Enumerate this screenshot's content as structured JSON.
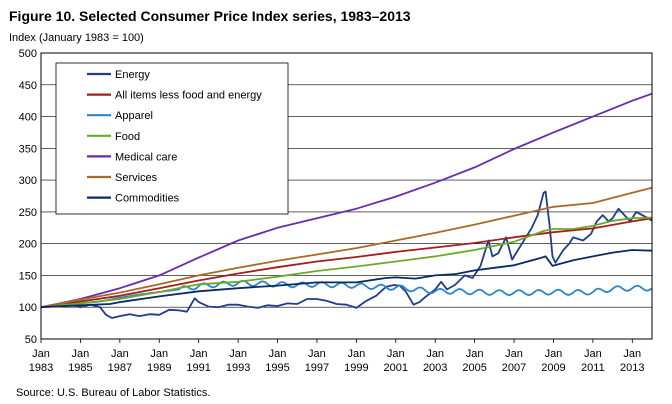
{
  "chart_data": {
    "type": "line",
    "title": "Figure 10. Selected Consumer Price Index series, 1983–2013",
    "ylabel": "Index (January 1983 = 100)",
    "xlabel": "",
    "source": "Source:  U.S. Bureau  of Labor Statistics.",
    "ylim": [
      50,
      500
    ],
    "yticks": [
      50,
      100,
      150,
      200,
      250,
      300,
      350,
      400,
      450,
      500
    ],
    "xlim": [
      1983.0,
      2014.0
    ],
    "xticks": [
      {
        "year": 1983,
        "line1": "Jan",
        "line2": "1983"
      },
      {
        "year": 1985,
        "line1": "Jan",
        "line2": "1985"
      },
      {
        "year": 1987,
        "line1": "Jan",
        "line2": "1987"
      },
      {
        "year": 1989,
        "line1": "Jan",
        "line2": "1989"
      },
      {
        "year": 1991,
        "line1": "Jan",
        "line2": "1991"
      },
      {
        "year": 1993,
        "line1": "Jan",
        "line2": "1993"
      },
      {
        "year": 1995,
        "line1": "Jan",
        "line2": "1995"
      },
      {
        "year": 1997,
        "line1": "Jan",
        "line2": "1997"
      },
      {
        "year": 1999,
        "line1": "Jan",
        "line2": "1999"
      },
      {
        "year": 2001,
        "line1": "Jan",
        "line2": "2001"
      },
      {
        "year": 2003,
        "line1": "Jan",
        "line2": "2003"
      },
      {
        "year": 2005,
        "line1": "Jan",
        "line2": "2005"
      },
      {
        "year": 2007,
        "line1": "Jan",
        "line2": "2007"
      },
      {
        "year": 2009,
        "line1": "Jan",
        "line2": "2009"
      },
      {
        "year": 2011,
        "line1": "Jan",
        "line2": "2011"
      },
      {
        "year": 2013,
        "line1": "Jan",
        "line2": "2013"
      }
    ],
    "grid": true,
    "legend_position": "top-left",
    "series": [
      {
        "name": "Energy",
        "color": "#1f3d8c",
        "points": [
          [
            1983.0,
            100
          ],
          [
            1983.5,
            103
          ],
          [
            1984.0,
            101
          ],
          [
            1984.5,
            104
          ],
          [
            1985.0,
            100
          ],
          [
            1985.5,
            104
          ],
          [
            1986.0,
            100
          ],
          [
            1986.3,
            88
          ],
          [
            1986.6,
            83
          ],
          [
            1987.0,
            86
          ],
          [
            1987.5,
            89
          ],
          [
            1988.0,
            86
          ],
          [
            1988.5,
            89
          ],
          [
            1989.0,
            88
          ],
          [
            1989.5,
            96
          ],
          [
            1990.0,
            95
          ],
          [
            1990.4,
            93
          ],
          [
            1990.8,
            114
          ],
          [
            1991.0,
            108
          ],
          [
            1991.5,
            101
          ],
          [
            1992.0,
            100
          ],
          [
            1992.5,
            104
          ],
          [
            1993.0,
            104
          ],
          [
            1993.5,
            101
          ],
          [
            1994.0,
            99
          ],
          [
            1994.5,
            103
          ],
          [
            1995.0,
            102
          ],
          [
            1995.5,
            106
          ],
          [
            1996.0,
            105
          ],
          [
            1996.5,
            113
          ],
          [
            1997.0,
            113
          ],
          [
            1997.5,
            110
          ],
          [
            1998.0,
            105
          ],
          [
            1998.5,
            104
          ],
          [
            1999.0,
            99
          ],
          [
            1999.5,
            110
          ],
          [
            2000.0,
            118
          ],
          [
            2000.5,
            132
          ],
          [
            2000.9,
            135
          ],
          [
            2001.2,
            134
          ],
          [
            2001.5,
            125
          ],
          [
            2001.9,
            104
          ],
          [
            2002.2,
            108
          ],
          [
            2002.5,
            116
          ],
          [
            2003.0,
            128
          ],
          [
            2003.3,
            140
          ],
          [
            2003.6,
            128
          ],
          [
            2004.0,
            135
          ],
          [
            2004.5,
            150
          ],
          [
            2004.9,
            146
          ],
          [
            2005.3,
            165
          ],
          [
            2005.7,
            205
          ],
          [
            2005.9,
            180
          ],
          [
            2006.2,
            185
          ],
          [
            2006.6,
            210
          ],
          [
            2006.9,
            175
          ],
          [
            2007.2,
            190
          ],
          [
            2007.6,
            210
          ],
          [
            2007.9,
            225
          ],
          [
            2008.2,
            245
          ],
          [
            2008.5,
            280
          ],
          [
            2008.6,
            282
          ],
          [
            2008.8,
            230
          ],
          [
            2008.95,
            180
          ],
          [
            2009.1,
            170
          ],
          [
            2009.5,
            190
          ],
          [
            2009.8,
            200
          ],
          [
            2010.0,
            210
          ],
          [
            2010.5,
            205
          ],
          [
            2010.9,
            215
          ],
          [
            2011.2,
            235
          ],
          [
            2011.5,
            245
          ],
          [
            2011.8,
            235
          ],
          [
            2012.0,
            240
          ],
          [
            2012.3,
            255
          ],
          [
            2012.6,
            245
          ],
          [
            2012.9,
            235
          ],
          [
            2013.2,
            250
          ],
          [
            2013.5,
            245
          ],
          [
            2013.8,
            240
          ],
          [
            2014.0,
            236
          ]
        ]
      },
      {
        "name": "All items less food and energy",
        "color": "#a31f1f",
        "points": [
          [
            1983.0,
            100
          ],
          [
            1985.0,
            109
          ],
          [
            1987.0,
            118
          ],
          [
            1989.0,
            130
          ],
          [
            1991.0,
            142
          ],
          [
            1993.0,
            153
          ],
          [
            1995.0,
            163
          ],
          [
            1997.0,
            172
          ],
          [
            1999.0,
            179
          ],
          [
            2001.0,
            187
          ],
          [
            2003.0,
            194
          ],
          [
            2005.0,
            201
          ],
          [
            2007.0,
            210
          ],
          [
            2009.0,
            218
          ],
          [
            2011.0,
            224
          ],
          [
            2013.0,
            235
          ],
          [
            2014.0,
            240
          ]
        ]
      },
      {
        "name": "Apparel",
        "color": "#2c86c8",
        "points": [
          [
            1983.0,
            100
          ],
          [
            1984.0,
            103
          ],
          [
            1985.0,
            106
          ],
          [
            1986.0,
            109
          ],
          [
            1987.0,
            115
          ],
          [
            1988.0,
            120
          ],
          [
            1989.0,
            124
          ],
          [
            1990.0,
            128
          ],
          [
            1991.0,
            133
          ],
          [
            1992.0,
            136
          ],
          [
            1993.0,
            138
          ],
          [
            1994.0,
            137
          ],
          [
            1995.0,
            136
          ],
          [
            1996.0,
            135
          ],
          [
            1997.0,
            136
          ],
          [
            1998.0,
            135
          ],
          [
            1999.0,
            134
          ],
          [
            2000.0,
            132
          ],
          [
            2001.0,
            131
          ],
          [
            2002.0,
            128
          ],
          [
            2003.0,
            125
          ],
          [
            2004.0,
            125
          ],
          [
            2005.0,
            124
          ],
          [
            2006.0,
            123
          ],
          [
            2007.0,
            123
          ],
          [
            2008.0,
            123
          ],
          [
            2009.0,
            124
          ],
          [
            2010.0,
            123
          ],
          [
            2011.0,
            124
          ],
          [
            2012.0,
            129
          ],
          [
            2013.0,
            130
          ],
          [
            2014.0,
            130
          ]
        ],
        "seasonal_amplitude": 4
      },
      {
        "name": "Food",
        "color": "#6aaa2b",
        "points": [
          [
            1983.0,
            100
          ],
          [
            1985.0,
            106
          ],
          [
            1987.0,
            113
          ],
          [
            1989.0,
            124
          ],
          [
            1991.0,
            136
          ],
          [
            1993.0,
            140
          ],
          [
            1995.0,
            148
          ],
          [
            1997.0,
            157
          ],
          [
            1999.0,
            164
          ],
          [
            2001.0,
            172
          ],
          [
            2003.0,
            180
          ],
          [
            2005.0,
            190
          ],
          [
            2007.0,
            203
          ],
          [
            2008.5,
            220
          ],
          [
            2009.0,
            223
          ],
          [
            2010.0,
            223
          ],
          [
            2011.0,
            228
          ],
          [
            2012.0,
            236
          ],
          [
            2013.0,
            240
          ],
          [
            2014.0,
            241
          ]
        ]
      },
      {
        "name": "Medical care",
        "color": "#6a2bb0",
        "points": [
          [
            1983.0,
            100
          ],
          [
            1985.0,
            113
          ],
          [
            1987.0,
            130
          ],
          [
            1989.0,
            150
          ],
          [
            1991.0,
            178
          ],
          [
            1993.0,
            205
          ],
          [
            1995.0,
            225
          ],
          [
            1997.0,
            240
          ],
          [
            1999.0,
            255
          ],
          [
            2001.0,
            274
          ],
          [
            2003.0,
            296
          ],
          [
            2005.0,
            320
          ],
          [
            2007.0,
            349
          ],
          [
            2009.0,
            375
          ],
          [
            2011.0,
            400
          ],
          [
            2013.0,
            425
          ],
          [
            2014.0,
            436
          ]
        ]
      },
      {
        "name": "Services",
        "color": "#a86a26",
        "points": [
          [
            1983.0,
            100
          ],
          [
            1985.0,
            112
          ],
          [
            1987.0,
            123
          ],
          [
            1989.0,
            136
          ],
          [
            1991.0,
            150
          ],
          [
            1993.0,
            162
          ],
          [
            1995.0,
            173
          ],
          [
            1997.0,
            183
          ],
          [
            1999.0,
            193
          ],
          [
            2001.0,
            205
          ],
          [
            2003.0,
            217
          ],
          [
            2005.0,
            230
          ],
          [
            2007.0,
            244
          ],
          [
            2009.0,
            258
          ],
          [
            2011.0,
            264
          ],
          [
            2013.0,
            280
          ],
          [
            2014.0,
            288
          ]
        ]
      },
      {
        "name": "Commodities",
        "color": "#0a2a66",
        "points": [
          [
            1983.0,
            100
          ],
          [
            1985.0,
            103
          ],
          [
            1986.5,
            105
          ],
          [
            1987.0,
            108
          ],
          [
            1989.0,
            117
          ],
          [
            1991.0,
            125
          ],
          [
            1993.0,
            130
          ],
          [
            1995.0,
            134
          ],
          [
            1997.0,
            139
          ],
          [
            1999.0,
            139
          ],
          [
            2000.5,
            146
          ],
          [
            2001.0,
            147
          ],
          [
            2002.0,
            145
          ],
          [
            2003.0,
            150
          ],
          [
            2004.0,
            152
          ],
          [
            2005.0,
            158
          ],
          [
            2006.0,
            162
          ],
          [
            2007.0,
            166
          ],
          [
            2008.3,
            177
          ],
          [
            2008.6,
            180
          ],
          [
            2008.95,
            165
          ],
          [
            2009.3,
            168
          ],
          [
            2010.0,
            174
          ],
          [
            2011.0,
            180
          ],
          [
            2012.0,
            186
          ],
          [
            2013.0,
            190
          ],
          [
            2014.0,
            189
          ]
        ]
      }
    ]
  }
}
